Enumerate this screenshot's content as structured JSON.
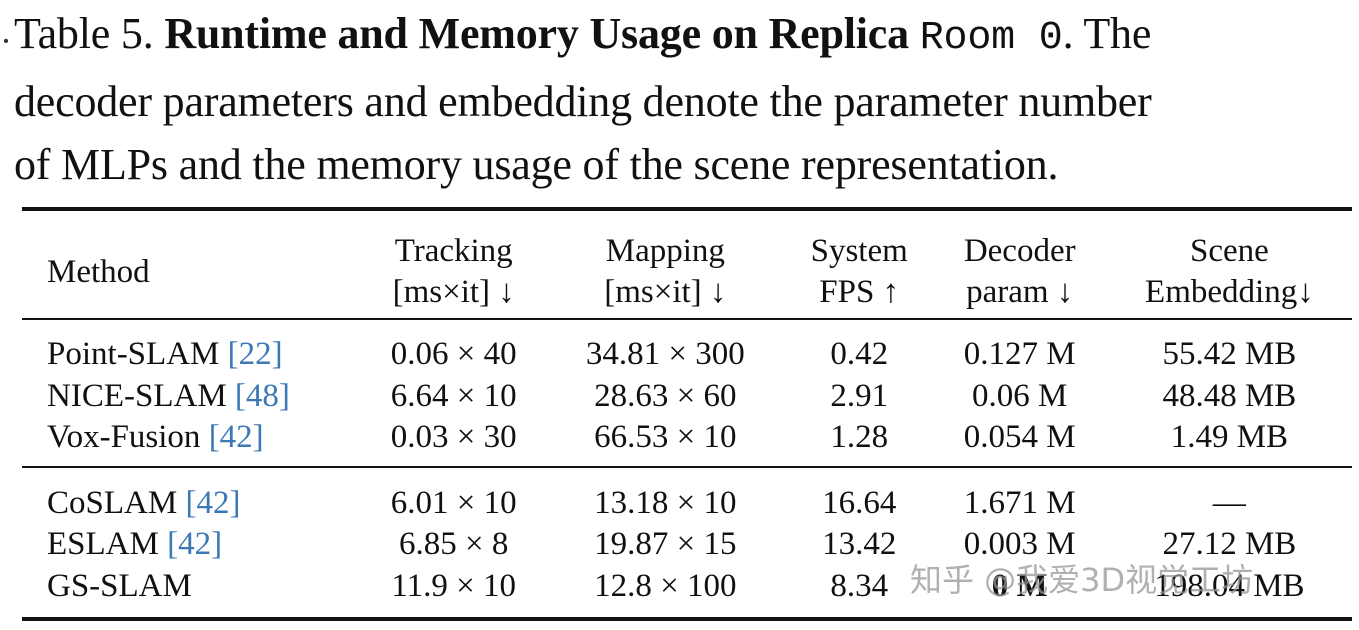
{
  "caption": {
    "label": "Table 5.",
    "bold_title": "Runtime and Memory Usage on Replica",
    "scene_code": "Room 0",
    "line1_tail": ". The",
    "line2": "decoder parameters and embedding denote the parameter number",
    "line3": "of MLPs and the memory usage of the scene representation."
  },
  "table": {
    "headers": {
      "method": "Method",
      "tracking_1": "Tracking",
      "tracking_2": "[ms×it] ↓",
      "mapping_1": "Mapping",
      "mapping_2": "[ms×it] ↓",
      "fps_1": "System",
      "fps_2": "FPS ↑",
      "decoder_1": "Decoder",
      "decoder_2": "param ↓",
      "scene_1": "Scene",
      "scene_2": "Embedding↓"
    },
    "rows": [
      {
        "method": "Point-SLAM",
        "ref": "[22]",
        "tracking": "0.06 × 40",
        "mapping": "34.81 × 300",
        "fps": "0.42",
        "decoder": "0.127 M",
        "scene": "55.42 MB"
      },
      {
        "method": "NICE-SLAM",
        "ref": "[48]",
        "tracking": "6.64 × 10",
        "mapping": "28.63 × 60",
        "fps": "2.91",
        "decoder": "0.06 M",
        "scene": "48.48 MB"
      },
      {
        "method": "Vox-Fusion",
        "ref": "[42]",
        "tracking": "0.03 × 30",
        "mapping": "66.53 × 10",
        "fps": "1.28",
        "decoder": "0.054 M",
        "scene": "1.49 MB"
      },
      {
        "method": "CoSLAM",
        "ref": "[42]",
        "tracking": "6.01 × 10",
        "mapping": "13.18 × 10",
        "fps": "16.64",
        "decoder": "1.671 M",
        "scene": "—"
      },
      {
        "method": "ESLAM",
        "ref": "[42]",
        "tracking": "6.85 × 8",
        "mapping": "19.87 × 15",
        "fps": "13.42",
        "decoder": "0.003 M",
        "scene": "27.12 MB"
      },
      {
        "method": "GS-SLAM",
        "ref": "",
        "tracking": "11.9 × 10",
        "mapping": "12.8 × 100",
        "fps": "8.34",
        "decoder": "0 M",
        "scene": "198.04 MB"
      }
    ]
  },
  "watermark": "知乎 @我爱3D视觉工坊"
}
